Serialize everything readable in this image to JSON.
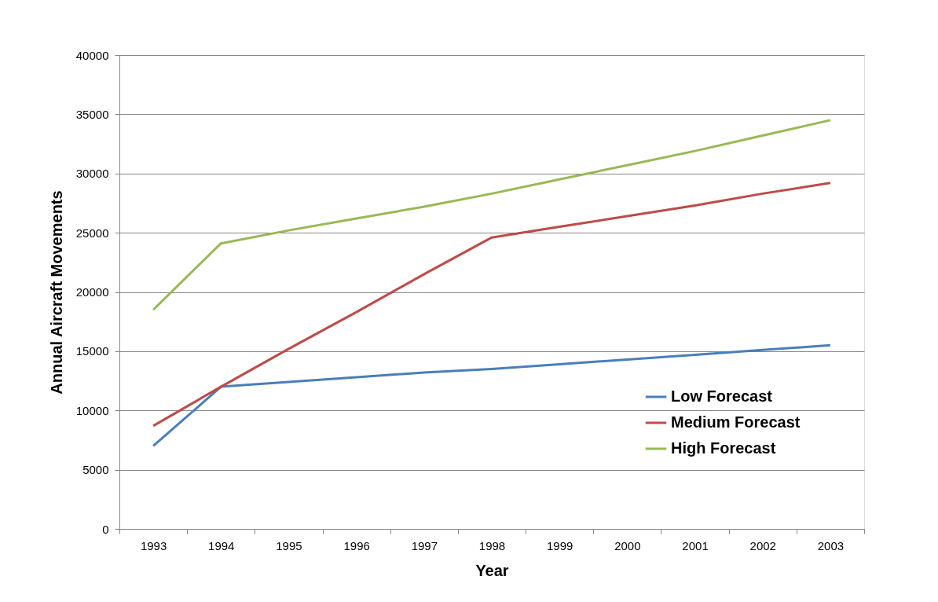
{
  "chart_data": {
    "type": "line",
    "xlabel": "Year",
    "ylabel": "Annual Aircraft Movements",
    "categories": [
      "1993",
      "1994",
      "1995",
      "1996",
      "1997",
      "1998",
      "1999",
      "2000",
      "2001",
      "2002",
      "2003"
    ],
    "series": [
      {
        "name": "Low Forecast",
        "color": "#4a7ebb",
        "values": [
          7000,
          12000,
          12400,
          12800,
          13200,
          13500,
          13900,
          14300,
          14700,
          15100,
          15500
        ]
      },
      {
        "name": "Medium Forecast",
        "color": "#be4b48",
        "values": [
          8700,
          12000,
          15200,
          18300,
          21500,
          24600,
          25500,
          26400,
          27300,
          28300,
          29200
        ]
      },
      {
        "name": "High Forecast",
        "color": "#98b954",
        "values": [
          18500,
          24100,
          25200,
          26200,
          27200,
          28300,
          29500,
          30700,
          31900,
          33200,
          34500
        ]
      }
    ],
    "ylim": [
      0,
      40000
    ],
    "yticks": [
      0,
      5000,
      10000,
      15000,
      20000,
      25000,
      30000,
      35000,
      40000
    ],
    "grid": "y",
    "legend": "bottom right",
    "marker": "none",
    "line_style": "solid"
  }
}
